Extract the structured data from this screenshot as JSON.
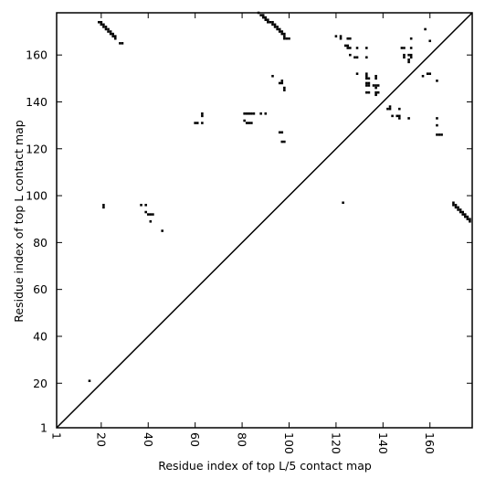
{
  "chart_data": {
    "type": "scatter",
    "xlabel": "Residue index of top L/5 contact map",
    "ylabel": "Residue index of top L contact map",
    "xlim": [
      1,
      178
    ],
    "ylim": [
      1,
      178
    ],
    "x_ticks": [
      {
        "value": 1,
        "label": "1"
      },
      {
        "value": 20,
        "label": "20"
      },
      {
        "value": 40,
        "label": "40"
      },
      {
        "value": 60,
        "label": "60"
      },
      {
        "value": 80,
        "label": "80"
      },
      {
        "value": 100,
        "label": "100"
      },
      {
        "value": 120,
        "label": "120"
      },
      {
        "value": 140,
        "label": "140"
      },
      {
        "value": 160,
        "label": "160"
      }
    ],
    "y_ticks": [
      {
        "value": 1,
        "label": "1"
      },
      {
        "value": 20,
        "label": "20"
      },
      {
        "value": 40,
        "label": "40"
      },
      {
        "value": 60,
        "label": "60"
      },
      {
        "value": 80,
        "label": "80"
      },
      {
        "value": 100,
        "label": "100"
      },
      {
        "value": 120,
        "label": "120"
      },
      {
        "value": 140,
        "label": "140"
      },
      {
        "value": 160,
        "label": "160"
      }
    ],
    "x_tick_rotation": -90,
    "grid": false,
    "diagonal": {
      "from": [
        1,
        1
      ],
      "to": [
        178,
        178
      ]
    },
    "marker_color": "#000000",
    "points": [
      [
        15,
        21
      ],
      [
        19,
        174
      ],
      [
        20,
        174
      ],
      [
        20,
        173
      ],
      [
        21,
        173
      ],
      [
        21,
        172
      ],
      [
        22,
        172
      ],
      [
        22,
        171
      ],
      [
        23,
        171
      ],
      [
        23,
        170
      ],
      [
        24,
        170
      ],
      [
        24,
        169
      ],
      [
        25,
        169
      ],
      [
        25,
        168
      ],
      [
        26,
        168
      ],
      [
        26,
        167
      ],
      [
        21,
        96
      ],
      [
        21,
        95
      ],
      [
        29,
        165
      ],
      [
        28,
        165
      ],
      [
        37,
        96
      ],
      [
        39,
        96
      ],
      [
        39,
        93
      ],
      [
        40,
        92
      ],
      [
        41,
        92
      ],
      [
        42,
        92
      ],
      [
        41,
        89
      ],
      [
        46,
        85
      ],
      [
        60,
        131
      ],
      [
        61,
        131
      ],
      [
        63,
        131
      ],
      [
        63,
        134
      ],
      [
        63,
        135
      ],
      [
        81,
        135
      ],
      [
        82,
        135
      ],
      [
        83,
        135
      ],
      [
        84,
        135
      ],
      [
        85,
        135
      ],
      [
        81,
        132
      ],
      [
        82,
        131
      ],
      [
        83,
        131
      ],
      [
        84,
        131
      ],
      [
        88,
        135
      ],
      [
        90,
        135
      ],
      [
        87,
        178
      ],
      [
        88,
        177
      ],
      [
        89,
        177
      ],
      [
        89,
        176
      ],
      [
        90,
        176
      ],
      [
        90,
        175
      ],
      [
        91,
        175
      ],
      [
        91,
        174
      ],
      [
        92,
        174
      ],
      [
        93,
        174
      ],
      [
        93,
        173
      ],
      [
        94,
        173
      ],
      [
        94,
        172
      ],
      [
        95,
        172
      ],
      [
        95,
        171
      ],
      [
        96,
        171
      ],
      [
        96,
        170
      ],
      [
        97,
        170
      ],
      [
        97,
        169
      ],
      [
        98,
        169
      ],
      [
        98,
        168
      ],
      [
        98,
        167
      ],
      [
        99,
        167
      ],
      [
        100,
        167
      ],
      [
        93,
        151
      ],
      [
        96,
        148
      ],
      [
        97,
        148
      ],
      [
        98,
        146
      ],
      [
        98,
        145
      ],
      [
        97,
        149
      ],
      [
        96,
        127
      ],
      [
        97,
        127
      ],
      [
        97,
        123
      ],
      [
        98,
        123
      ],
      [
        120,
        168
      ],
      [
        122,
        168
      ],
      [
        122,
        167
      ],
      [
        125,
        167
      ],
      [
        126,
        167
      ],
      [
        124,
        164
      ],
      [
        125,
        164
      ],
      [
        125,
        163
      ],
      [
        126,
        163
      ],
      [
        123,
        97
      ],
      [
        126,
        160
      ],
      [
        128,
        159
      ],
      [
        129,
        159
      ],
      [
        129,
        163
      ],
      [
        129,
        152
      ],
      [
        133,
        163
      ],
      [
        133,
        159
      ],
      [
        133,
        152
      ],
      [
        133,
        151
      ],
      [
        133,
        150
      ],
      [
        134,
        150
      ],
      [
        133,
        148
      ],
      [
        134,
        148
      ],
      [
        133,
        147
      ],
      [
        134,
        147
      ],
      [
        133,
        144
      ],
      [
        134,
        144
      ],
      [
        136,
        147
      ],
      [
        137,
        147
      ],
      [
        138,
        147
      ],
      [
        137,
        151
      ],
      [
        137,
        150
      ],
      [
        137,
        146
      ],
      [
        137,
        144
      ],
      [
        138,
        144
      ],
      [
        137,
        143
      ],
      [
        142,
        137
      ],
      [
        143,
        137
      ],
      [
        143,
        138
      ],
      [
        144,
        134
      ],
      [
        146,
        134
      ],
      [
        147,
        134
      ],
      [
        147,
        133
      ],
      [
        147,
        137
      ],
      [
        148,
        163
      ],
      [
        149,
        163
      ],
      [
        149,
        160
      ],
      [
        149,
        159
      ],
      [
        151,
        160
      ],
      [
        152,
        160
      ],
      [
        152,
        159
      ],
      [
        151,
        158
      ],
      [
        151,
        157
      ],
      [
        152,
        167
      ],
      [
        152,
        163
      ],
      [
        151,
        133
      ],
      [
        158,
        171
      ],
      [
        159,
        152
      ],
      [
        160,
        152
      ],
      [
        157,
        151
      ],
      [
        160,
        166
      ],
      [
        163,
        149
      ],
      [
        163,
        133
      ],
      [
        163,
        130
      ],
      [
        163,
        126
      ],
      [
        164,
        126
      ],
      [
        165,
        126
      ],
      [
        170,
        97
      ],
      [
        170,
        96
      ],
      [
        171,
        96
      ],
      [
        171,
        95
      ],
      [
        172,
        95
      ],
      [
        172,
        94
      ],
      [
        173,
        94
      ],
      [
        173,
        93
      ],
      [
        174,
        93
      ],
      [
        174,
        92
      ],
      [
        175,
        92
      ],
      [
        175,
        91
      ],
      [
        176,
        91
      ],
      [
        176,
        90
      ],
      [
        177,
        90
      ],
      [
        177,
        89
      ]
    ]
  }
}
